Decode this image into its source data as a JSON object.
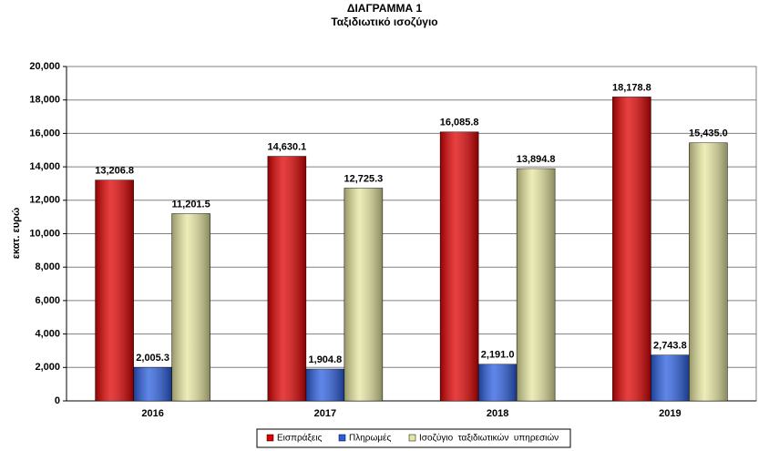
{
  "chart_data": {
    "type": "bar",
    "title": "ΔΙΑΓΡΑΜΜΑ 1",
    "subtitle": "Ταξιδιωτικό ισοζύγιο",
    "y_label": "εκατ. ευρώ",
    "categories": [
      "2016",
      "2017",
      "2018",
      "2019"
    ],
    "series": [
      {
        "name": "Εισπράξεις",
        "color": "#e00000",
        "values": [
          13206.8,
          14630.1,
          16085.8,
          18178.8
        ],
        "value_labels": [
          "13,206.8",
          "14,630.1",
          "16,085.8",
          "18,178.8"
        ]
      },
      {
        "name": "Πληρωμές",
        "color": "#2a5ee0",
        "values": [
          2005.3,
          1904.8,
          2191.0,
          2743.8
        ],
        "value_labels": [
          "2,005.3",
          "1,904.8",
          "2,191.0",
          "2,743.8"
        ]
      },
      {
        "name": "Ισοζύγιο  ταξιδιωτικών  υπηρεσιών",
        "color": "#e6e6a0",
        "values": [
          11201.5,
          12725.3,
          13894.8,
          15435.0
        ],
        "value_labels": [
          "11,201.5",
          "12,725.3",
          "13,894.8",
          "15,435.0"
        ]
      }
    ],
    "ylim": [
      0,
      20000
    ],
    "yticks": [
      0,
      {
        "value": 2000,
        "label": "2,000"
      },
      {
        "value": 4000,
        "label": "4,000"
      },
      {
        "value": 6000,
        "label": "6,000"
      },
      {
        "value": 8000,
        "label": "8,000"
      },
      {
        "value": 10000,
        "label": "10,000"
      },
      {
        "value": 12000,
        "label": "12,000"
      },
      {
        "value": 14000,
        "label": "14,000"
      },
      {
        "value": 16000,
        "label": "16,000"
      },
      {
        "value": 18000,
        "label": "18,000"
      },
      {
        "value": 20000,
        "label": "20,000"
      }
    ],
    "grid": true,
    "legend": "bottom"
  }
}
